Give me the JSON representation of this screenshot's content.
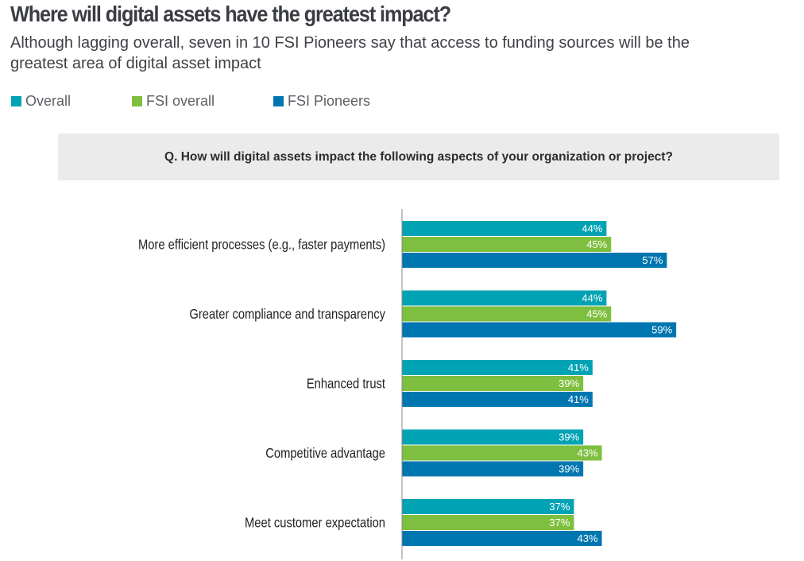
{
  "header": {
    "title": "Where will digital assets have the greatest impact?",
    "subtitle": "Although lagging overall, seven in 10 FSI Pioneers say that access to funding sources will be the greatest area of digital asset impact"
  },
  "legend": [
    {
      "label": "Overall",
      "color": "#00a3b4"
    },
    {
      "label": "FSI overall",
      "color": "#7fbf3f"
    },
    {
      "label": "FSI Pioneers",
      "color": "#0076b0"
    }
  ],
  "question": "Q. How will digital assets impact the following aspects of your organization or project?",
  "chart_data": {
    "type": "bar",
    "orientation": "horizontal",
    "title": "Where will digital assets have the greatest impact?",
    "subtitle": "Q. How will digital assets impact the following aspects of your organization or project?",
    "xlabel": "",
    "ylabel": "",
    "unit": "%",
    "xlim": [
      0,
      100
    ],
    "grid": false,
    "legend_position": "top-left",
    "categories": [
      "More efficient processes (e.g., faster payments)",
      "Greater compliance and transparency",
      "Enhanced trust",
      "Competitive advantage",
      "Meet customer expectation"
    ],
    "series": [
      {
        "name": "Overall",
        "color": "#00a3b4",
        "values": [
          44,
          44,
          41,
          39,
          37
        ]
      },
      {
        "name": "FSI overall",
        "color": "#7fbf3f",
        "values": [
          45,
          45,
          39,
          43,
          37
        ]
      },
      {
        "name": "FSI Pioneers",
        "color": "#0076b0",
        "values": [
          57,
          59,
          41,
          39,
          43
        ]
      }
    ]
  }
}
